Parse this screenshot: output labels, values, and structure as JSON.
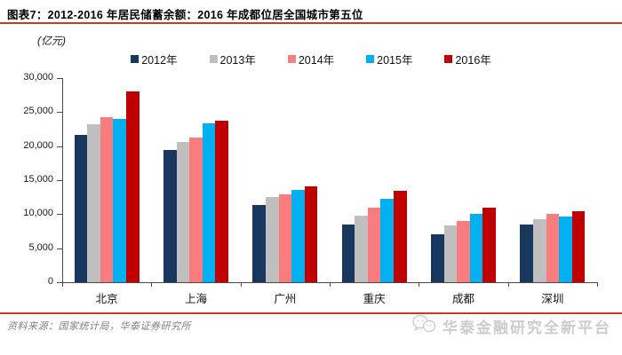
{
  "header": {
    "title": "图表7：2012-2016 年居民储蓄余额：2016 年成都位居全国城市第五位"
  },
  "unit_label": "(亿元)",
  "chart_data": {
    "type": "bar",
    "title": "2012-2016 年居民储蓄余额",
    "ylabel": "亿元",
    "xlabel": "",
    "categories": [
      "北京",
      "上海",
      "广州",
      "重庆",
      "成都",
      "深圳"
    ],
    "series": [
      {
        "name": "2012年",
        "color": "#17375E",
        "values": [
          21600,
          19500,
          11400,
          8500,
          7100,
          8500
        ]
      },
      {
        "name": "2013年",
        "color": "#BFBFBF",
        "values": [
          23200,
          20600,
          12500,
          9800,
          8300,
          9300
        ]
      },
      {
        "name": "2014年",
        "color": "#F97D7F",
        "values": [
          24200,
          21300,
          12900,
          10900,
          9000,
          10000
        ]
      },
      {
        "name": "2015年",
        "color": "#00B0F0",
        "values": [
          24000,
          23400,
          13600,
          12300,
          10000,
          9700
        ]
      },
      {
        "name": "2016年",
        "color": "#C00000",
        "values": [
          28100,
          23700,
          14100,
          13500,
          10900,
          10500
        ]
      }
    ],
    "ylim": [
      0,
      30000
    ],
    "ytick_step": 5000,
    "ytick_labels": [
      "0",
      "5,000",
      "10,000",
      "15,000",
      "20,000",
      "25,000",
      "30,000"
    ],
    "legend_position": "top",
    "grid": false
  },
  "footer": {
    "source": "资料来源：国家统计局，华泰证券研究所",
    "watermark": "华泰金融研究全新平台"
  },
  "colors": {
    "accent_red_line": "#C63A27",
    "axis": "#4A4A4A",
    "watermark_gray": "#CCCCCC"
  }
}
